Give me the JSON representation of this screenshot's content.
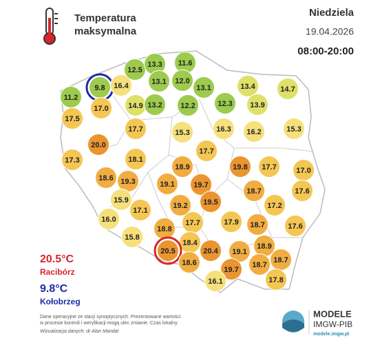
{
  "header": {
    "title_line1": "Temperatura",
    "title_line2": "maksymalna",
    "day": "Niedziela",
    "date": "19.04.2026",
    "hours": "08:00-20:00"
  },
  "extremes": {
    "max_value": "20.5°C",
    "max_station": "Racibórz",
    "min_value": "9.8°C",
    "min_station": "Kołobrzeg"
  },
  "stations": [
    {
      "temp": "11.2"
    },
    {
      "temp": "9.8"
    },
    {
      "temp": "16.4"
    },
    {
      "temp": "12.5"
    },
    {
      "temp": "13.3"
    },
    {
      "temp": "11.6"
    },
    {
      "temp": "13.1"
    },
    {
      "temp": "12.0"
    },
    {
      "temp": "13.1"
    },
    {
      "temp": "13.4"
    },
    {
      "temp": "14.7"
    },
    {
      "temp": "17.0"
    },
    {
      "temp": "14.9"
    },
    {
      "temp": "13.2"
    },
    {
      "temp": "12.2"
    },
    {
      "temp": "12.3"
    },
    {
      "temp": "13.9"
    },
    {
      "temp": "17.5"
    },
    {
      "temp": "17.7"
    },
    {
      "temp": "15.3"
    },
    {
      "temp": "16.3"
    },
    {
      "temp": "16.2"
    },
    {
      "temp": "15.3"
    },
    {
      "temp": "20.0"
    },
    {
      "temp": "17.7"
    },
    {
      "temp": "17.3"
    },
    {
      "temp": "18.1"
    },
    {
      "temp": "18.9"
    },
    {
      "temp": "19.8"
    },
    {
      "temp": "17.7"
    },
    {
      "temp": "17.0"
    },
    {
      "temp": "18.6"
    },
    {
      "temp": "19.3"
    },
    {
      "temp": "19.1"
    },
    {
      "temp": "19.7"
    },
    {
      "temp": "18.7"
    },
    {
      "temp": "17.6"
    },
    {
      "temp": "15.9"
    },
    {
      "temp": "19.5"
    },
    {
      "temp": "17.2"
    },
    {
      "temp": "17.1"
    },
    {
      "temp": "19.2"
    },
    {
      "temp": "16.0"
    },
    {
      "temp": "17.7"
    },
    {
      "temp": "17.9"
    },
    {
      "temp": "18.7"
    },
    {
      "temp": "17.6"
    },
    {
      "temp": "18.8"
    },
    {
      "temp": "15.8"
    },
    {
      "temp": "18.4"
    },
    {
      "temp": "20.5"
    },
    {
      "temp": "20.4"
    },
    {
      "temp": "19.1"
    },
    {
      "temp": "18.9"
    },
    {
      "temp": "18.6"
    },
    {
      "temp": "18.7"
    },
    {
      "temp": "18.7"
    },
    {
      "temp": "19.7"
    },
    {
      "temp": "17.8"
    },
    {
      "temp": "16.1"
    }
  ],
  "footer": {
    "note_line1": "Dane operacyjne ze stacji synoptycznych. Prezentowane wartości",
    "note_line2": "w procesie kontroli i weryfikacji mogą ulec zmianie. Czas lokalny.",
    "credit": "Wizualizacja danych: dr Alan Mandal",
    "logo_title": "MODELE",
    "logo_org": "IMGW-PIB",
    "logo_url": "modele.imgw.pl"
  }
}
